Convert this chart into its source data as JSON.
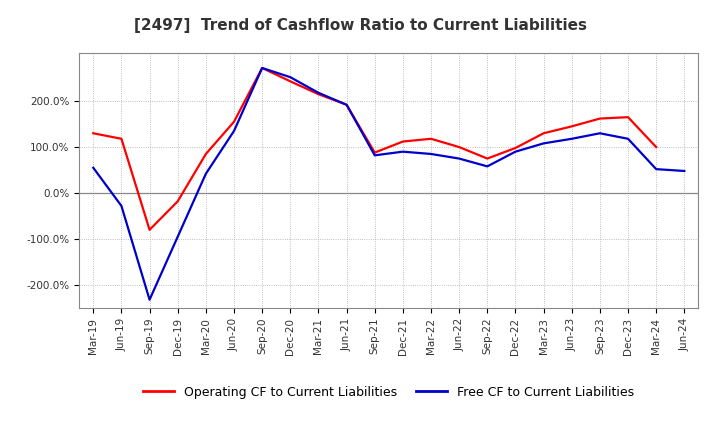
{
  "title": "[2497]  Trend of Cashflow Ratio to Current Liabilities",
  "xlabel_labels": [
    "Mar-19",
    "Jun-19",
    "Sep-19",
    "Dec-19",
    "Mar-20",
    "Jun-20",
    "Sep-20",
    "Dec-20",
    "Mar-21",
    "Jun-21",
    "Sep-21",
    "Dec-21",
    "Mar-22",
    "Jun-22",
    "Sep-22",
    "Dec-22",
    "Mar-23",
    "Jun-23",
    "Sep-23",
    "Dec-23",
    "Mar-24",
    "Jun-24"
  ],
  "operating_cf": [
    130,
    118,
    -80,
    -18,
    85,
    155,
    272,
    243,
    215,
    192,
    88,
    112,
    118,
    100,
    75,
    98,
    130,
    145,
    162,
    165,
    100,
    null
  ],
  "free_cf": [
    55,
    -28,
    -232,
    -95,
    42,
    135,
    272,
    252,
    218,
    192,
    82,
    90,
    85,
    75,
    58,
    90,
    108,
    118,
    130,
    118,
    52,
    48
  ],
  "ylim": [
    -250,
    305
  ],
  "ytick_values": [
    -200,
    -100,
    0,
    100,
    200
  ],
  "ytick_labels": [
    "-200.0%",
    "-100.0%",
    "0.0%",
    "100.0%",
    "200.0%"
  ],
  "operating_color": "#FF0000",
  "free_color": "#0000CD",
  "legend_operating": "Operating CF to Current Liabilities",
  "legend_free": "Free CF to Current Liabilities",
  "background_color": "#FFFFFF",
  "grid_color": "#AAAAAA",
  "zero_line_color": "#888888",
  "title_fontsize": 11,
  "tick_fontsize": 7.5,
  "legend_fontsize": 9
}
